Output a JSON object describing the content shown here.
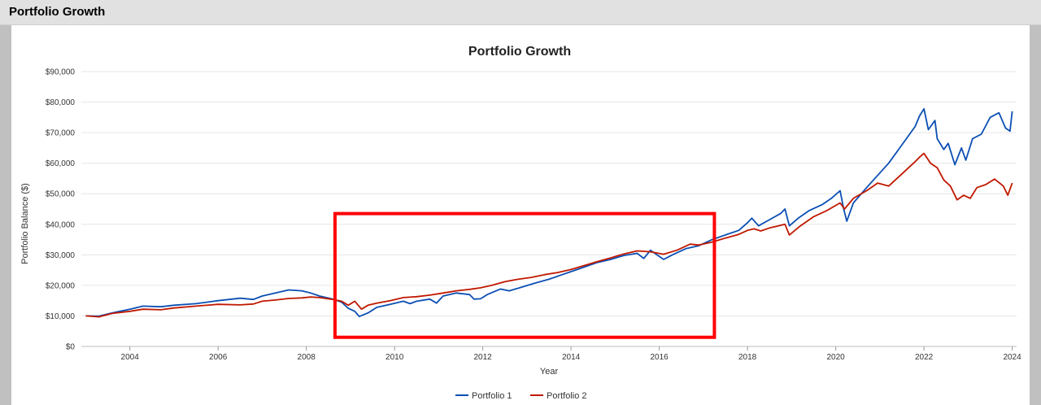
{
  "panel": {
    "title": "Portfolio Growth"
  },
  "chart_data": {
    "type": "line",
    "title": "Portfolio Growth",
    "xlabel": "Year",
    "ylabel": "Portfolio Balance ($)",
    "xlim": [
      2002.9,
      2024.1
    ],
    "ylim": [
      0,
      90000
    ],
    "x_ticks": [
      2004,
      2006,
      2008,
      2010,
      2012,
      2014,
      2016,
      2018,
      2020,
      2022,
      2024
    ],
    "x_tick_labels": [
      "2004",
      "2006",
      "2008",
      "2010",
      "2012",
      "2014",
      "2016",
      "2018",
      "2020",
      "2022",
      "2024"
    ],
    "y_ticks": [
      0,
      10000,
      20000,
      30000,
      40000,
      50000,
      60000,
      70000,
      80000,
      90000
    ],
    "y_tick_labels": [
      "$0",
      "$10,000",
      "$20,000",
      "$30,000",
      "$40,000",
      "$50,000",
      "$60,000",
      "$70,000",
      "$80,000",
      "$90,000"
    ],
    "legend_position": "bottom-center",
    "grid": true,
    "series": [
      {
        "name": "Portfolio 1",
        "color": "#0b4fb3",
        "points": [
          [
            2003.0,
            10000
          ],
          [
            2003.3,
            9900
          ],
          [
            2003.6,
            11000
          ],
          [
            2004.0,
            12200
          ],
          [
            2004.3,
            13200
          ],
          [
            2004.7,
            13000
          ],
          [
            2005.0,
            13500
          ],
          [
            2005.5,
            14000
          ],
          [
            2006.0,
            15000
          ],
          [
            2006.5,
            15800
          ],
          [
            2006.8,
            15400
          ],
          [
            2007.0,
            16500
          ],
          [
            2007.3,
            17500
          ],
          [
            2007.6,
            18500
          ],
          [
            2007.9,
            18200
          ],
          [
            2008.1,
            17500
          ],
          [
            2008.3,
            16500
          ],
          [
            2008.6,
            15500
          ],
          [
            2008.8,
            14500
          ],
          [
            2008.95,
            12500
          ],
          [
            2009.1,
            11500
          ],
          [
            2009.2,
            9800
          ],
          [
            2009.4,
            11000
          ],
          [
            2009.6,
            12800
          ],
          [
            2009.9,
            13800
          ],
          [
            2010.2,
            14800
          ],
          [
            2010.35,
            14000
          ],
          [
            2010.5,
            14800
          ],
          [
            2010.8,
            15500
          ],
          [
            2010.95,
            14200
          ],
          [
            2011.1,
            16500
          ],
          [
            2011.4,
            17500
          ],
          [
            2011.7,
            17000
          ],
          [
            2011.8,
            15500
          ],
          [
            2011.95,
            15600
          ],
          [
            2012.1,
            17000
          ],
          [
            2012.4,
            18800
          ],
          [
            2012.6,
            18200
          ],
          [
            2012.9,
            19500
          ],
          [
            2013.2,
            20800
          ],
          [
            2013.5,
            22000
          ],
          [
            2013.8,
            23500
          ],
          [
            2014.0,
            24500
          ],
          [
            2014.3,
            26000
          ],
          [
            2014.6,
            27500
          ],
          [
            2014.9,
            28500
          ],
          [
            2015.2,
            29800
          ],
          [
            2015.5,
            30500
          ],
          [
            2015.65,
            28800
          ],
          [
            2015.8,
            31500
          ],
          [
            2015.9,
            30500
          ],
          [
            2016.1,
            28500
          ],
          [
            2016.3,
            30000
          ],
          [
            2016.6,
            32000
          ],
          [
            2016.9,
            33000
          ],
          [
            2017.2,
            35000
          ],
          [
            2017.5,
            36500
          ],
          [
            2017.8,
            38000
          ],
          [
            2018.0,
            40500
          ],
          [
            2018.1,
            42000
          ],
          [
            2018.25,
            39500
          ],
          [
            2018.5,
            41500
          ],
          [
            2018.75,
            43500
          ],
          [
            2018.85,
            45000
          ],
          [
            2018.95,
            39500
          ],
          [
            2019.15,
            42000
          ],
          [
            2019.4,
            44500
          ],
          [
            2019.7,
            46500
          ],
          [
            2019.9,
            48500
          ],
          [
            2020.1,
            51000
          ],
          [
            2020.18,
            45000
          ],
          [
            2020.25,
            41000
          ],
          [
            2020.4,
            47000
          ],
          [
            2020.7,
            52000
          ],
          [
            2020.95,
            56000
          ],
          [
            2021.2,
            60000
          ],
          [
            2021.5,
            66000
          ],
          [
            2021.8,
            72000
          ],
          [
            2021.9,
            75500
          ],
          [
            2022.0,
            77800
          ],
          [
            2022.1,
            71000
          ],
          [
            2022.25,
            74000
          ],
          [
            2022.3,
            68000
          ],
          [
            2022.45,
            64500
          ],
          [
            2022.55,
            66500
          ],
          [
            2022.7,
            59500
          ],
          [
            2022.85,
            65000
          ],
          [
            2022.95,
            61000
          ],
          [
            2023.1,
            68000
          ],
          [
            2023.3,
            69500
          ],
          [
            2023.5,
            75000
          ],
          [
            2023.7,
            76500
          ],
          [
            2023.85,
            71500
          ],
          [
            2023.95,
            70500
          ],
          [
            2024.0,
            77000
          ]
        ]
      },
      {
        "name": "Portfolio 2",
        "color": "#c01800",
        "points": [
          [
            2003.0,
            10000
          ],
          [
            2003.3,
            9700
          ],
          [
            2003.6,
            10800
          ],
          [
            2004.0,
            11500
          ],
          [
            2004.3,
            12200
          ],
          [
            2004.7,
            12000
          ],
          [
            2005.0,
            12600
          ],
          [
            2005.5,
            13200
          ],
          [
            2006.0,
            13800
          ],
          [
            2006.5,
            13600
          ],
          [
            2006.8,
            13900
          ],
          [
            2007.0,
            14800
          ],
          [
            2007.3,
            15200
          ],
          [
            2007.6,
            15700
          ],
          [
            2007.9,
            15900
          ],
          [
            2008.1,
            16200
          ],
          [
            2008.3,
            16000
          ],
          [
            2008.6,
            15400
          ],
          [
            2008.8,
            14800
          ],
          [
            2008.95,
            13500
          ],
          [
            2009.1,
            14800
          ],
          [
            2009.25,
            12200
          ],
          [
            2009.4,
            13500
          ],
          [
            2009.6,
            14200
          ],
          [
            2009.9,
            15000
          ],
          [
            2010.2,
            16000
          ],
          [
            2010.5,
            16300
          ],
          [
            2010.8,
            16800
          ],
          [
            2011.1,
            17500
          ],
          [
            2011.4,
            18200
          ],
          [
            2011.7,
            18700
          ],
          [
            2011.95,
            19200
          ],
          [
            2012.2,
            20000
          ],
          [
            2012.5,
            21200
          ],
          [
            2012.8,
            22000
          ],
          [
            2013.1,
            22600
          ],
          [
            2013.4,
            23500
          ],
          [
            2013.7,
            24200
          ],
          [
            2014.0,
            25200
          ],
          [
            2014.3,
            26500
          ],
          [
            2014.6,
            27800
          ],
          [
            2014.9,
            29000
          ],
          [
            2015.2,
            30300
          ],
          [
            2015.5,
            31300
          ],
          [
            2015.8,
            31000
          ],
          [
            2016.1,
            30200
          ],
          [
            2016.4,
            31500
          ],
          [
            2016.7,
            33500
          ],
          [
            2016.9,
            33200
          ],
          [
            2017.2,
            34200
          ],
          [
            2017.5,
            35500
          ],
          [
            2017.8,
            36700
          ],
          [
            2018.0,
            38000
          ],
          [
            2018.15,
            38500
          ],
          [
            2018.3,
            37800
          ],
          [
            2018.5,
            38800
          ],
          [
            2018.7,
            39500
          ],
          [
            2018.85,
            40000
          ],
          [
            2018.95,
            36500
          ],
          [
            2019.2,
            39500
          ],
          [
            2019.5,
            42500
          ],
          [
            2019.8,
            44500
          ],
          [
            2020.1,
            47000
          ],
          [
            2020.2,
            45000
          ],
          [
            2020.4,
            48500
          ],
          [
            2020.7,
            51000
          ],
          [
            2020.95,
            53500
          ],
          [
            2021.2,
            52500
          ],
          [
            2021.5,
            56500
          ],
          [
            2021.8,
            60500
          ],
          [
            2021.9,
            62000
          ],
          [
            2022.0,
            63200
          ],
          [
            2022.15,
            60000
          ],
          [
            2022.3,
            58500
          ],
          [
            2022.45,
            54500
          ],
          [
            2022.6,
            52500
          ],
          [
            2022.75,
            48000
          ],
          [
            2022.9,
            49500
          ],
          [
            2023.05,
            48500
          ],
          [
            2023.2,
            52000
          ],
          [
            2023.4,
            53000
          ],
          [
            2023.6,
            54800
          ],
          [
            2023.8,
            52500
          ],
          [
            2023.9,
            49500
          ],
          [
            2024.0,
            53500
          ]
        ]
      }
    ],
    "annotation": {
      "type": "highlight-rectangle",
      "x_range": [
        2008.65,
        2017.25
      ],
      "y_range": [
        3000,
        43500
      ],
      "color": "#ff0000"
    }
  }
}
